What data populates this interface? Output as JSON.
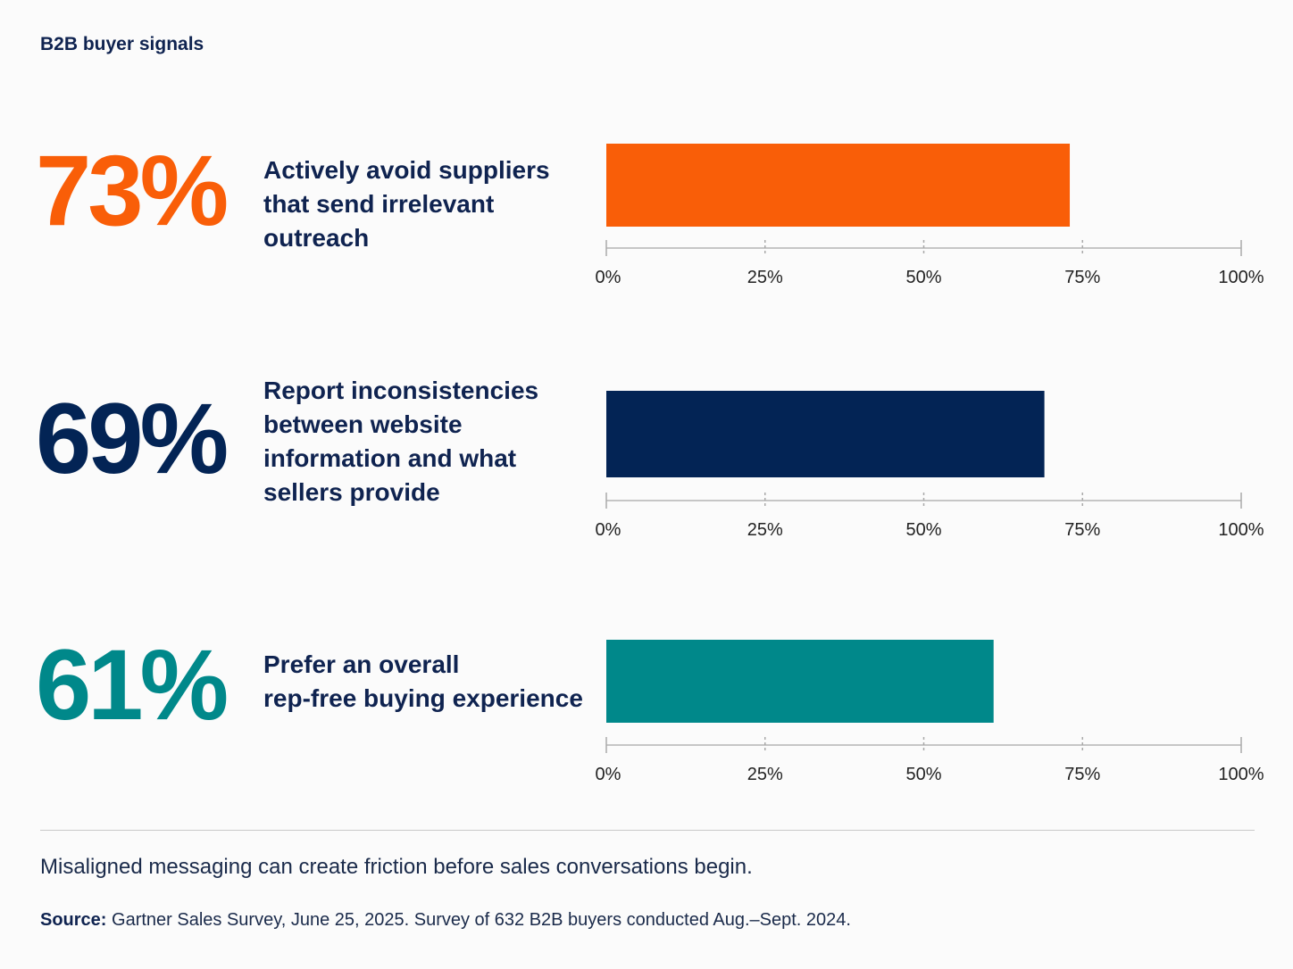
{
  "header": {
    "title": "B2B buyer signals"
  },
  "chart_data": {
    "type": "bar",
    "orientation": "horizontal",
    "xlim": [
      0,
      100
    ],
    "ticks": [
      "0%",
      "25%",
      "50%",
      "75%",
      "100%"
    ],
    "tick_values": [
      0,
      25,
      50,
      75,
      100
    ],
    "grid": false,
    "rows": [
      {
        "stat": "73%",
        "value": 73,
        "color": "#f95e08",
        "label_lines": [
          "Actively avoid suppliers",
          "that send irrelevant outreach"
        ]
      },
      {
        "stat": "69%",
        "value": 69,
        "color": "#032455",
        "label_lines": [
          "Report inconsistencies",
          "between website",
          "information and what",
          "sellers provide"
        ]
      },
      {
        "stat": "61%",
        "value": 61,
        "color": "#00888a",
        "label_lines": [
          "Prefer an overall",
          "rep-free buying experience"
        ]
      }
    ]
  },
  "footer": {
    "note": "Misaligned messaging can create friction before sales conversations begin.",
    "source_label": "Source:",
    "source_text": " Gartner Sales Survey, June 25, 2025. Survey of 632 B2B buyers conducted Aug.–Sept. 2024."
  }
}
